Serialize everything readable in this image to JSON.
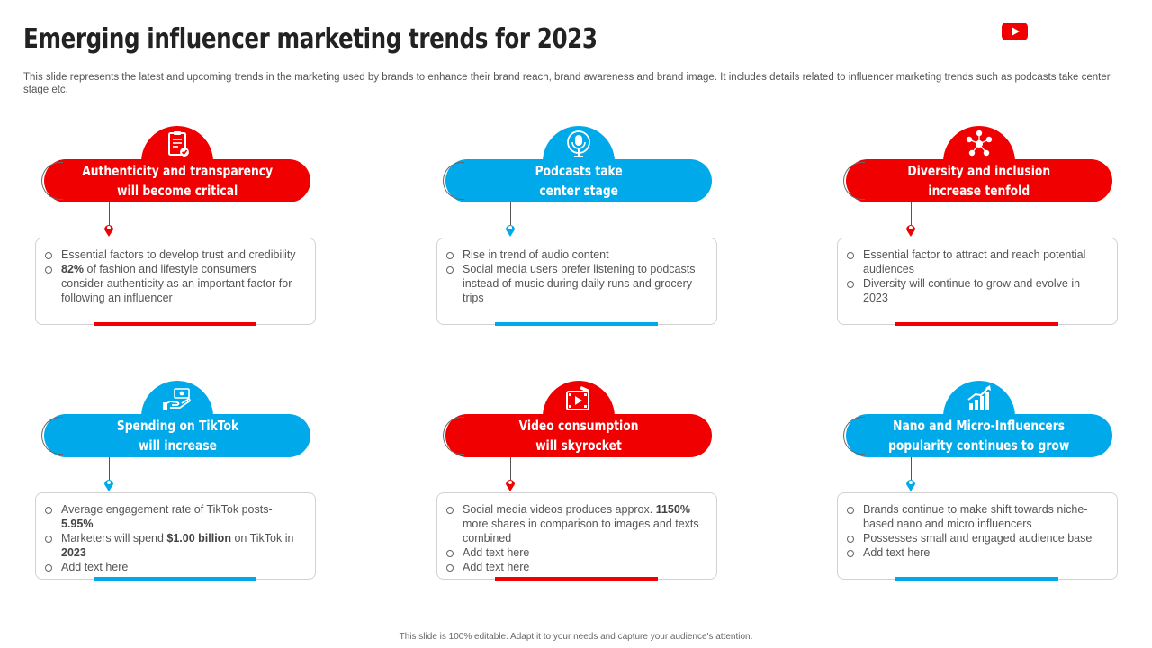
{
  "slide": {
    "title": "Emerging influencer marketing trends for 2023",
    "subtitle": "This slide represents the latest and upcoming trends in the marketing used by brands to enhance their brand reach, brand awareness and brand image. It includes details related to influencer marketing trends such as podcasts take center stage etc.",
    "footer": "This slide is 100% editable.  Adapt it to your needs and capture your audience's attention."
  },
  "colors": {
    "red": "#f00000",
    "blue": "#00a9ea"
  },
  "cards": [
    {
      "heading": "Authenticity and transparency\nwill become critical",
      "icon": "clipboard-check-icon",
      "color": "red",
      "bullets": [
        [
          {
            "t": "Essential factors to develop trust and credibility"
          }
        ],
        [
          {
            "t": "82%",
            "b": true
          },
          {
            "t": " of fashion and lifestyle consumers consider authenticity as an important factor for following an influencer"
          }
        ]
      ]
    },
    {
      "heading": "Podcasts take\ncenter stage",
      "icon": "microphone-icon",
      "color": "blue",
      "bullets": [
        [
          {
            "t": "Rise in trend of audio content"
          }
        ],
        [
          {
            "t": "Social media users prefer listening to podcasts instead of music during daily runs and grocery trips"
          }
        ]
      ]
    },
    {
      "heading": "Diversity and inclusion\nincrease tenfold",
      "icon": "people-network-icon",
      "color": "red",
      "bullets": [
        [
          {
            "t": "Essential factor to attract and reach potential audiences"
          }
        ],
        [
          {
            "t": "Diversity will continue to grow and evolve  in 2023"
          }
        ]
      ]
    },
    {
      "heading": "Spending on TikTok\nwill increase",
      "icon": "hand-money-icon",
      "color": "blue",
      "bullets": [
        [
          {
            "t": "Average  engagement  rate of TikTok posts- "
          },
          {
            "t": "5.95%",
            "b": true
          }
        ],
        [
          {
            "t": "Marketers will spend "
          },
          {
            "t": "$1.00 billion",
            "b": true
          },
          {
            "t": " on TikTok  in "
          },
          {
            "t": "2023",
            "b": true
          }
        ],
        [
          {
            "t": "Add text here"
          }
        ]
      ]
    },
    {
      "heading": "Video consumption\nwill skyrocket",
      "icon": "video-film-icon",
      "color": "red",
      "bullets": [
        [
          {
            "t": "Social media videos  produces approx. "
          },
          {
            "t": "1150%",
            "b": true
          },
          {
            "t": "  more shares in comparison to images and texts combined"
          }
        ],
        [
          {
            "t": "Add text here"
          }
        ],
        [
          {
            "t": "Add text here"
          }
        ]
      ]
    },
    {
      "heading": "Nano and Micro-Influencers\npopularity continues to grow",
      "icon": "growth-chart-icon",
      "color": "blue",
      "bullets": [
        [
          {
            "t": "Brands continue to make shift towards niche-based nano and micro influencers"
          }
        ],
        [
          {
            "t": "Possesses small and engaged audience base"
          }
        ],
        [
          {
            "t": "Add text here"
          }
        ]
      ]
    }
  ]
}
